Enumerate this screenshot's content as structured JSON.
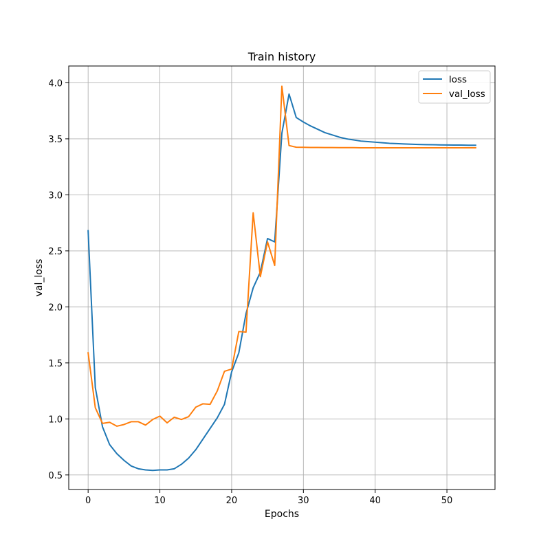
{
  "chart_data": {
    "type": "line",
    "title": "Train history",
    "xlabel": "Epochs",
    "ylabel": "val_loss",
    "xlim": [
      -2.7,
      56.7
    ],
    "ylim": [
      0.37,
      4.15
    ],
    "xticks": [
      0,
      10,
      20,
      30,
      40,
      50
    ],
    "yticks": [
      0.5,
      1.0,
      1.5,
      2.0,
      2.5,
      3.0,
      3.5,
      4.0
    ],
    "xtick_labels": [
      "0",
      "10",
      "20",
      "30",
      "40",
      "50"
    ],
    "ytick_labels": [
      "0.5",
      "1.0",
      "1.5",
      "2.0",
      "2.5",
      "3.0",
      "3.5",
      "4.0"
    ],
    "grid": true,
    "legend_position": "top-right",
    "x": [
      0,
      1,
      2,
      3,
      4,
      5,
      6,
      7,
      8,
      9,
      10,
      11,
      12,
      13,
      14,
      15,
      16,
      17,
      18,
      19,
      20,
      21,
      22,
      23,
      24,
      25,
      26,
      27,
      28,
      29,
      30,
      31,
      32,
      33,
      34,
      35,
      36,
      37,
      38,
      39,
      40,
      41,
      42,
      43,
      44,
      45,
      46,
      47,
      48,
      49,
      50,
      51,
      52,
      53,
      54
    ],
    "series": [
      {
        "name": "loss",
        "color": "#1f77b4",
        "values": [
          2.68,
          1.28,
          0.93,
          0.77,
          0.69,
          0.63,
          0.58,
          0.555,
          0.545,
          0.54,
          0.545,
          0.545,
          0.555,
          0.595,
          0.65,
          0.725,
          0.82,
          0.915,
          1.01,
          1.13,
          1.42,
          1.59,
          1.94,
          2.17,
          2.31,
          2.61,
          2.58,
          3.55,
          3.9,
          3.69,
          3.65,
          3.615,
          3.585,
          3.555,
          3.535,
          3.515,
          3.5,
          3.49,
          3.48,
          3.475,
          3.47,
          3.465,
          3.46,
          3.457,
          3.454,
          3.452,
          3.45,
          3.448,
          3.447,
          3.446,
          3.445,
          3.444,
          3.444,
          3.443,
          3.443
        ]
      },
      {
        "name": "val_loss",
        "color": "#ff7f0e",
        "values": [
          1.59,
          1.1,
          0.96,
          0.97,
          0.935,
          0.95,
          0.975,
          0.975,
          0.945,
          0.995,
          1.025,
          0.965,
          1.015,
          0.995,
          1.02,
          1.105,
          1.135,
          1.13,
          1.25,
          1.425,
          1.445,
          1.78,
          1.775,
          2.84,
          2.27,
          2.58,
          2.37,
          3.97,
          3.44,
          3.425,
          3.424,
          3.423,
          3.423,
          3.422,
          3.422,
          3.421,
          3.421,
          3.421,
          3.42,
          3.42,
          3.42,
          3.42,
          3.42,
          3.42,
          3.42,
          3.42,
          3.42,
          3.42,
          3.42,
          3.42,
          3.42,
          3.42,
          3.42,
          3.42,
          3.42
        ]
      }
    ]
  }
}
